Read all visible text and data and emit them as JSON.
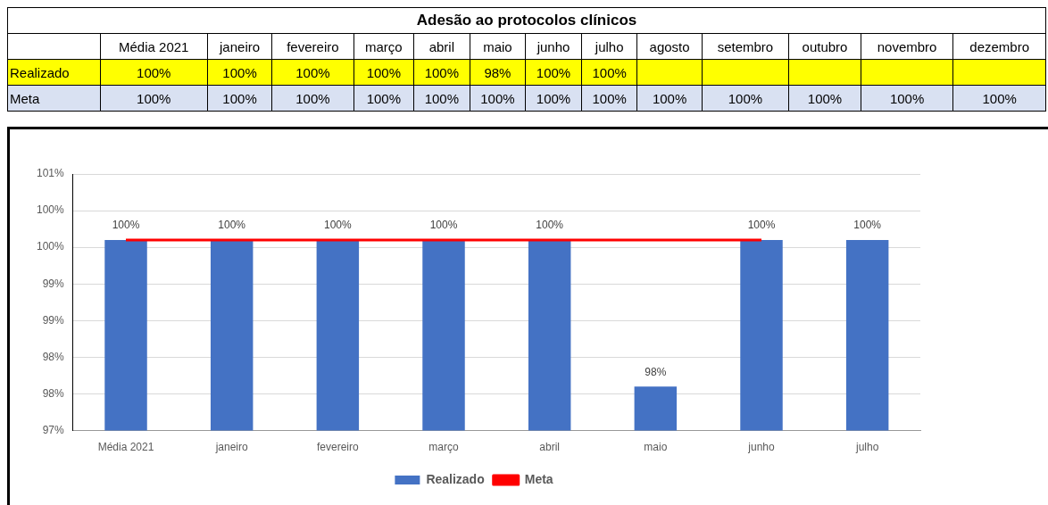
{
  "chart_data": [
    {
      "type": "other",
      "title": "Adesão ao protocolos clínicos",
      "categories": [
        "Média 2021",
        "janeiro",
        "fevereiro",
        "março",
        "abril",
        "maio",
        "junho",
        "julho",
        "agosto",
        "setembro",
        "outubro",
        "novembro",
        "dezembro"
      ],
      "series": [
        {
          "name": "Realizado",
          "color": "#ffff00",
          "values": [
            100,
            100,
            100,
            100,
            100,
            98,
            100,
            100,
            null,
            null,
            null,
            null,
            null
          ],
          "value_labels": [
            "100%",
            "100%",
            "100%",
            "100%",
            "100%",
            "98%",
            "100%",
            "100%",
            null,
            null,
            null,
            null,
            null
          ]
        },
        {
          "name": "Meta",
          "color": "#d9e1f2",
          "values": [
            100,
            100,
            100,
            100,
            100,
            100,
            100,
            100,
            100,
            100,
            100,
            100,
            100
          ],
          "value_labels": [
            "100%",
            "100%",
            "100%",
            "100%",
            "100%",
            "100%",
            "100%",
            "100%",
            "100%",
            "100%",
            "100%",
            "100%",
            "100%"
          ]
        }
      ]
    },
    {
      "type": "bar",
      "categories": [
        "Média 2021",
        "janeiro",
        "fevereiro",
        "março",
        "abril",
        "maio",
        "junho",
        "julho"
      ],
      "series": [
        {
          "name": "Realizado",
          "type": "bar",
          "color": "#4472c4",
          "values": [
            100,
            100,
            100,
            100,
            100,
            98,
            100,
            100
          ],
          "value_labels": [
            "100%",
            "100%",
            "100%",
            "100%",
            "100%",
            "98%",
            "100%",
            "100%"
          ]
        },
        {
          "name": "Meta",
          "type": "line",
          "color": "#ff0000",
          "values": [
            100,
            100,
            100,
            100,
            100,
            100,
            100,
            null
          ],
          "marker": "none"
        }
      ],
      "ylim": [
        97.4,
        100.9
      ],
      "yticks": [
        {
          "value": 97.4,
          "label": "97%"
        },
        {
          "value": 97.9,
          "label": "98%"
        },
        {
          "value": 98.4,
          "label": "98%"
        },
        {
          "value": 98.9,
          "label": "99%"
        },
        {
          "value": 99.4,
          "label": "99%"
        },
        {
          "value": 99.9,
          "label": "100%"
        },
        {
          "value": 100.4,
          "label": "100%"
        },
        {
          "value": 100.9,
          "label": "101%"
        }
      ],
      "grid": "y",
      "legend": "bottom"
    }
  ]
}
